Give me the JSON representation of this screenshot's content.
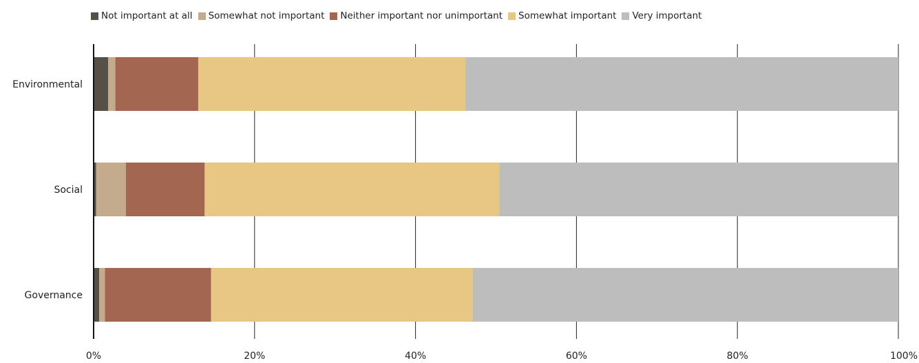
{
  "chart_data": {
    "type": "bar",
    "orientation": "horizontal",
    "stacked": true,
    "percent": true,
    "categories": [
      "Environmental",
      "Social",
      "Governance"
    ],
    "series": [
      {
        "name": "Not important at all",
        "color": "#575046",
        "values": [
          1.8,
          0.3,
          0.7
        ]
      },
      {
        "name": "Somewhat not important",
        "color": "#c4ab8d",
        "values": [
          0.9,
          3.7,
          0.7
        ]
      },
      {
        "name": "Neither important nor unimportant",
        "color": "#a36751",
        "values": [
          10.3,
          9.8,
          13.2
        ]
      },
      {
        "name": "Somewhat important",
        "color": "#e8c784",
        "values": [
          33.2,
          36.6,
          32.5
        ]
      },
      {
        "name": "Very important",
        "color": "#bdbdbd",
        "values": [
          53.8,
          49.6,
          52.9
        ]
      }
    ],
    "xlim": [
      0,
      100
    ],
    "xticks": [
      "0%",
      "20%",
      "40%",
      "60%",
      "80%",
      "100%"
    ],
    "grid": true,
    "legend_position": "top"
  }
}
